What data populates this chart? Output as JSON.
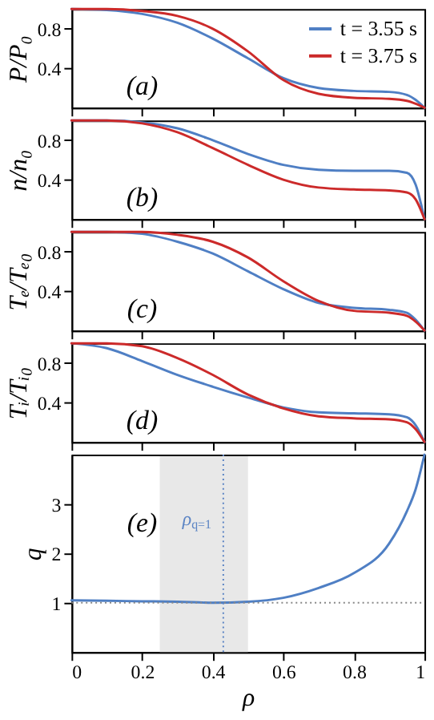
{
  "chart_data": [
    {
      "type": "line",
      "ylabel": "P/P₀",
      "x": [
        0,
        0.1,
        0.2,
        0.3,
        0.4,
        0.5,
        0.6,
        0.7,
        0.8,
        0.9,
        0.95,
        0.975,
        1
      ],
      "xlim": [
        0,
        1
      ],
      "xticks": [
        0,
        0.2,
        0.4,
        0.6,
        0.8,
        1
      ],
      "ylim": [
        0,
        1
      ],
      "yticks": [
        0.4,
        0.8
      ],
      "tick_labels": "y",
      "grid": false,
      "legend": "top right",
      "annotations": [
        "(a)"
      ],
      "series": [
        {
          "name": "t = 3.55 s",
          "color": "#4f7fc4",
          "values": [
            1,
            0.99,
            0.95,
            0.86,
            0.7,
            0.5,
            0.3,
            0.2,
            0.17,
            0.16,
            0.13,
            0.08,
            0
          ]
        },
        {
          "name": "t = 3.75 s",
          "color": "#cc2a2a",
          "values": [
            1,
            1,
            0.98,
            0.93,
            0.8,
            0.57,
            0.28,
            0.14,
            0.1,
            0.09,
            0.07,
            0.04,
            0
          ]
        }
      ]
    },
    {
      "type": "line",
      "ylabel": "n/n₀",
      "x": [
        0,
        0.1,
        0.2,
        0.3,
        0.4,
        0.5,
        0.6,
        0.7,
        0.8,
        0.9,
        0.95,
        0.975,
        1
      ],
      "xlim": [
        0,
        1
      ],
      "xticks": [
        0,
        0.2,
        0.4,
        0.6,
        0.8,
        1
      ],
      "ylim": [
        0,
        1
      ],
      "yticks": [
        0.4,
        0.8
      ],
      "tick_labels": "y",
      "grid": false,
      "annotations": [
        "(b)"
      ],
      "series": [
        {
          "color": "#4f7fc4",
          "values": [
            1,
            1,
            0.98,
            0.92,
            0.8,
            0.66,
            0.55,
            0.5,
            0.49,
            0.49,
            0.47,
            0.35,
            0
          ]
        },
        {
          "color": "#cc2a2a",
          "values": [
            1,
            1,
            0.97,
            0.88,
            0.72,
            0.55,
            0.4,
            0.32,
            0.3,
            0.29,
            0.27,
            0.2,
            0
          ]
        }
      ]
    },
    {
      "type": "line",
      "ylabel": "Tₑ/Tₑ₀",
      "x": [
        0,
        0.1,
        0.2,
        0.3,
        0.4,
        0.5,
        0.6,
        0.7,
        0.8,
        0.9,
        0.95,
        0.975,
        1
      ],
      "xlim": [
        0,
        1
      ],
      "xticks": [
        0,
        0.2,
        0.4,
        0.6,
        0.8,
        1
      ],
      "ylim": [
        0,
        1
      ],
      "yticks": [
        0.4,
        0.8
      ],
      "tick_labels": "y",
      "grid": false,
      "annotations": [
        "(c)"
      ],
      "series": [
        {
          "color": "#4f7fc4",
          "values": [
            1,
            1,
            0.98,
            0.9,
            0.78,
            0.6,
            0.42,
            0.28,
            0.23,
            0.21,
            0.18,
            0.11,
            0
          ]
        },
        {
          "color": "#cc2a2a",
          "values": [
            1,
            1,
            1,
            0.97,
            0.9,
            0.74,
            0.5,
            0.3,
            0.2,
            0.18,
            0.15,
            0.09,
            0
          ]
        }
      ]
    },
    {
      "type": "line",
      "ylabel": "Tᵢ/Tᵢ₀",
      "x": [
        0,
        0.1,
        0.2,
        0.3,
        0.4,
        0.5,
        0.6,
        0.7,
        0.8,
        0.9,
        0.95,
        0.975,
        1
      ],
      "xlim": [
        0,
        1
      ],
      "xticks": [
        0,
        0.2,
        0.4,
        0.6,
        0.8,
        1
      ],
      "ylim": [
        0,
        1
      ],
      "yticks": [
        0.4,
        0.8
      ],
      "tick_labels": "y",
      "grid": false,
      "annotations": [
        "(d)"
      ],
      "series": [
        {
          "color": "#4f7fc4",
          "values": [
            1,
            0.95,
            0.82,
            0.68,
            0.56,
            0.45,
            0.35,
            0.3,
            0.29,
            0.28,
            0.25,
            0.17,
            0
          ]
        },
        {
          "color": "#cc2a2a",
          "values": [
            1,
            1,
            0.97,
            0.85,
            0.68,
            0.48,
            0.34,
            0.26,
            0.24,
            0.23,
            0.2,
            0.13,
            0
          ]
        }
      ]
    },
    {
      "type": "line",
      "ylabel": "q",
      "xlabel": "ρ",
      "x": [
        0,
        0.1,
        0.2,
        0.3,
        0.4,
        0.5,
        0.6,
        0.7,
        0.8,
        0.9,
        0.95,
        0.975,
        1
      ],
      "xlim": [
        0,
        1
      ],
      "xticks": [
        0,
        0.2,
        0.4,
        0.6,
        0.8,
        1
      ],
      "ylim": [
        0,
        4
      ],
      "yticks": [
        1,
        2,
        3
      ],
      "grid": false,
      "annotations": [
        "(e)",
        {
          "text": "ρ$_{q=1}$",
          "x": 0.43,
          "y": 2.7
        }
      ],
      "bands": [
        {
          "axis": "x",
          "from": 0.25,
          "to": 0.5,
          "color": "#e8e8e8"
        }
      ],
      "ref_lines": [
        {
          "axis": "y",
          "value": 1,
          "color": "#888888",
          "line_style": "dotted"
        },
        {
          "axis": "x",
          "value": 0.43,
          "color": "#5b84c4",
          "line_style": "dotted"
        }
      ],
      "series": [
        {
          "color": "#4f7fc4",
          "values": [
            1.05,
            1.04,
            1.03,
            1.02,
            1.0,
            1.02,
            1.1,
            1.3,
            1.6,
            2.2,
            2.85,
            3.3,
            4.0
          ]
        }
      ]
    }
  ]
}
